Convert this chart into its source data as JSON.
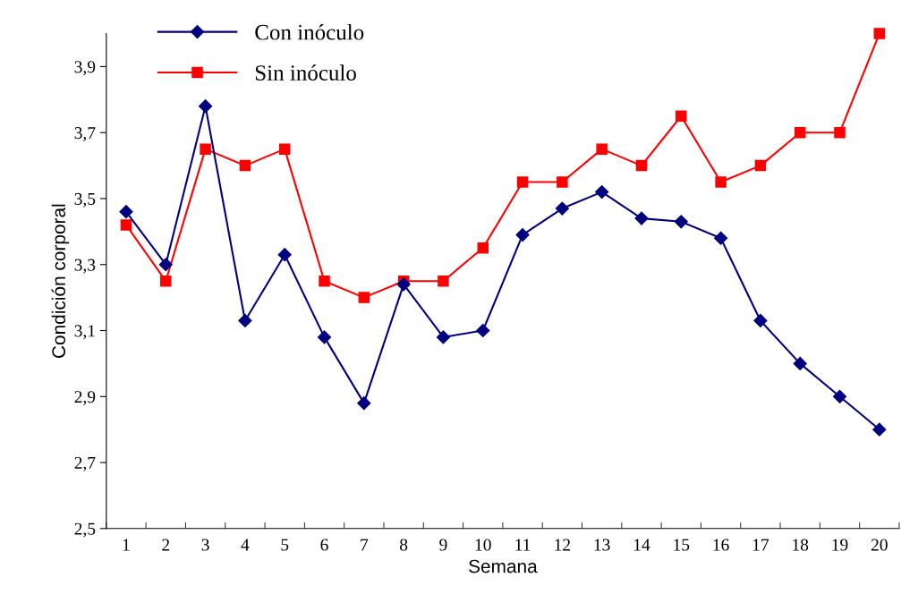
{
  "chart_data": {
    "type": "line",
    "xlabel": "Semana",
    "ylabel": "Condición corporal",
    "categories": [
      "1",
      "2",
      "3",
      "4",
      "5",
      "6",
      "7",
      "8",
      "9",
      "10",
      "11",
      "12",
      "13",
      "14",
      "15",
      "16",
      "17",
      "18",
      "19",
      "20"
    ],
    "series": [
      {
        "name": "Con inóculo",
        "color": "#000080",
        "marker": "diamond",
        "values": [
          3.46,
          3.3,
          3.78,
          3.13,
          3.33,
          3.08,
          2.88,
          3.24,
          3.08,
          3.1,
          3.39,
          3.47,
          3.52,
          3.44,
          3.43,
          3.38,
          3.13,
          3.0,
          2.9,
          2.8
        ]
      },
      {
        "name": "Sin inóculo",
        "color": "#ff0000",
        "marker": "square",
        "values": [
          3.42,
          3.25,
          3.65,
          3.6,
          3.65,
          3.25,
          3.2,
          3.25,
          3.25,
          3.35,
          3.55,
          3.55,
          3.65,
          3.6,
          3.75,
          3.55,
          3.6,
          3.7,
          3.7,
          4.0
        ]
      }
    ],
    "ylim": [
      2.5,
      4.0
    ],
    "yticks": [
      {
        "value": 2.5,
        "label": "2,5"
      },
      {
        "value": 2.7,
        "label": "2,7"
      },
      {
        "value": 2.9,
        "label": "2,9"
      },
      {
        "value": 3.1,
        "label": "3,1"
      },
      {
        "value": 3.3,
        "label": "3,3"
      },
      {
        "value": 3.5,
        "label": "3,5"
      },
      {
        "value": 3.7,
        "label": "3,7"
      },
      {
        "value": 3.9,
        "label": "3,9"
      }
    ],
    "grid": false,
    "legend": "top left",
    "line_style": "solid"
  }
}
